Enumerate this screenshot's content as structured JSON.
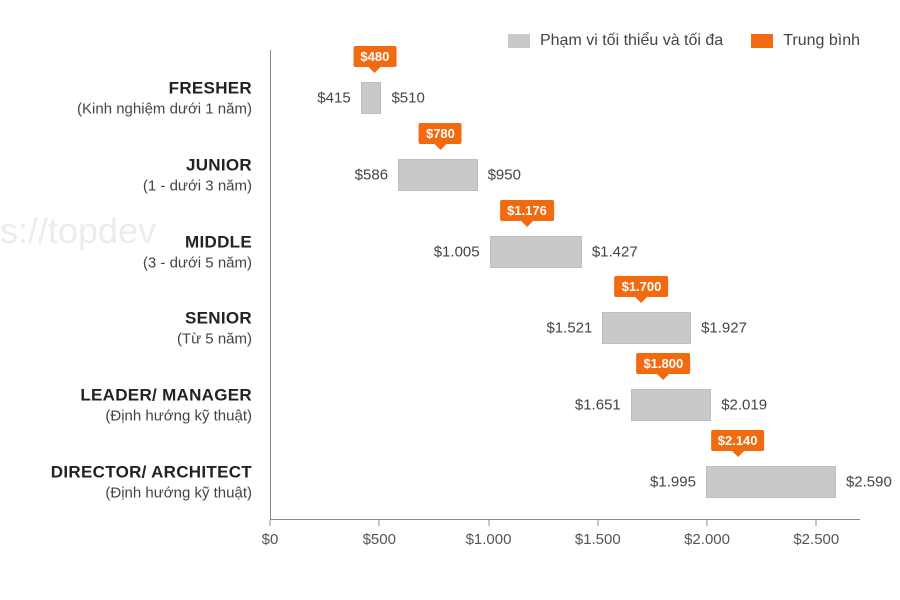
{
  "watermark_text": "s://topdev",
  "legend": {
    "range_label": "Phạm vi tối thiểu và tối đa",
    "avg_label": "Trung bình",
    "range_swatch_color": "#c9c9c9",
    "avg_swatch_color": "#f26a0f"
  },
  "chart": {
    "type": "range-bar-horizontal",
    "x_domain": [
      0,
      2700
    ],
    "x_ticks": [
      0,
      500,
      1000,
      1500,
      2000,
      2500
    ],
    "x_tick_labels": [
      "$0",
      "$500",
      "$1.000",
      "$1.500",
      "$2.000",
      "$2.500"
    ],
    "bar_color": "#c9c9c9",
    "accent_color": "#f26a0f",
    "label_fontsize_title": 17,
    "label_fontsize_sub": 15,
    "value_fontsize": 15,
    "tag_fontsize": 13,
    "background_color": "#ffffff",
    "axis_color": "#888888",
    "categories": [
      {
        "title": "FRESHER",
        "subtitle": "(Kinh nghiệm dưới 1 năm)",
        "min": 415,
        "max": 510,
        "avg": 480,
        "min_label": "$415",
        "max_label": "$510",
        "avg_label": "$480"
      },
      {
        "title": "JUNIOR",
        "subtitle": "(1 - dưới 3 năm)",
        "min": 586,
        "max": 950,
        "avg": 780,
        "min_label": "$586",
        "max_label": "$950",
        "avg_label": "$780"
      },
      {
        "title": "MIDDLE",
        "subtitle": "(3 - dưới 5 năm)",
        "min": 1005,
        "max": 1427,
        "avg": 1176,
        "min_label": "$1.005",
        "max_label": "$1.427",
        "avg_label": "$1.176"
      },
      {
        "title": "SENIOR",
        "subtitle": "(Từ 5 năm)",
        "min": 1521,
        "max": 1927,
        "avg": 1700,
        "min_label": "$1.521",
        "max_label": "$1.927",
        "avg_label": "$1.700"
      },
      {
        "title": "LEADER/ MANAGER",
        "subtitle": "(Định hướng kỹ thuật)",
        "min": 1651,
        "max": 2019,
        "avg": 1800,
        "min_label": "$1.651",
        "max_label": "$2.019",
        "avg_label": "$1.800"
      },
      {
        "title": "DIRECTOR/ ARCHITECT",
        "subtitle": "(Định hướng kỹ thuật)",
        "min": 1995,
        "max": 2590,
        "avg": 2140,
        "min_label": "$1.995",
        "max_label": "$2.590",
        "avg_label": "$2.140"
      }
    ]
  }
}
